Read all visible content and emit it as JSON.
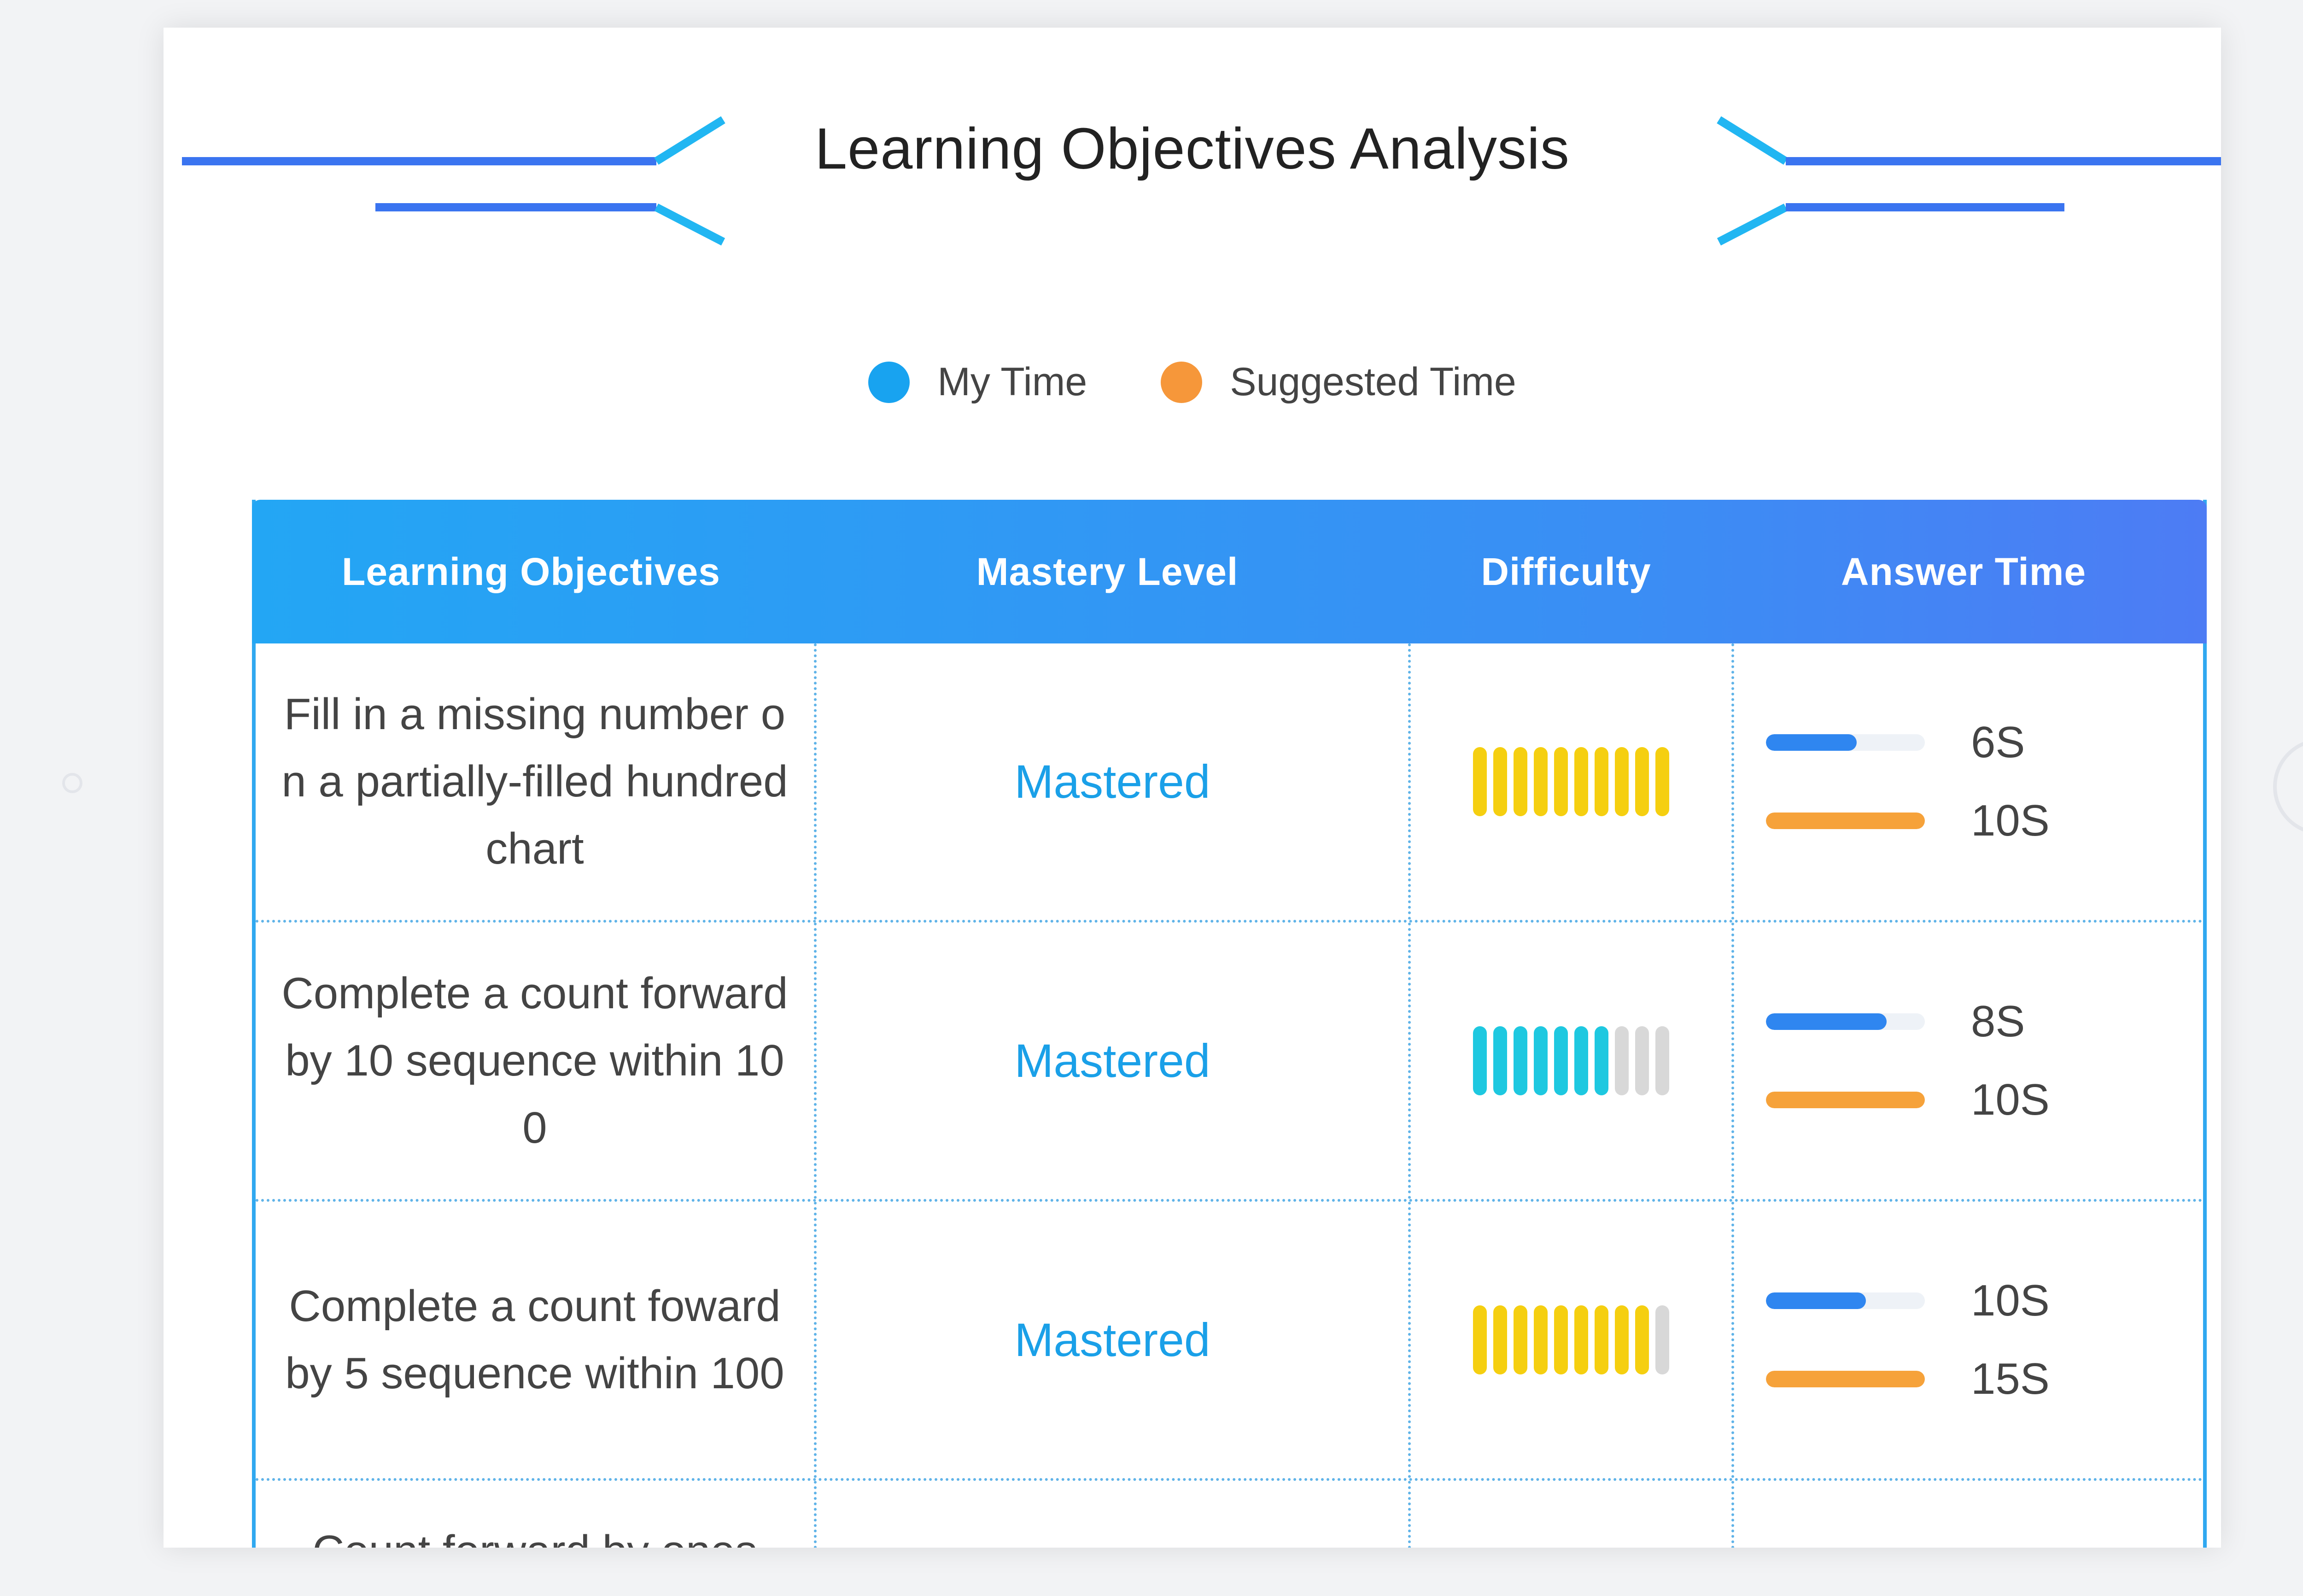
{
  "report": {
    "title": "Learning Objectives Analysis",
    "legend": [
      {
        "label": "My Time",
        "color": "#18a3f0"
      },
      {
        "label": "Suggested Time",
        "color": "#f6973a"
      }
    ],
    "columns": [
      "Learning Objectives",
      "Mastery Level",
      "Difficulty",
      "Answer Time"
    ],
    "rows": [
      {
        "objective": "Fill in a missing number on a partially-filled hundred chart",
        "mastery": "Mastered",
        "difficulty": {
          "filled": 10,
          "total": 10,
          "color": "#f5cf10"
        },
        "my_time": "6S",
        "my_time_value": 6,
        "suggested_time": "10S",
        "suggested_time_value": 10
      },
      {
        "objective": "Complete a count forward by 10 sequence within 100",
        "mastery": "Mastered",
        "difficulty": {
          "filled": 7,
          "total": 10,
          "color": "#1ec8e0"
        },
        "my_time": "8S",
        "my_time_value": 8,
        "suggested_time": "10S",
        "suggested_time_value": 10
      },
      {
        "objective": "Complete a count foward by 5 sequence within 100",
        "mastery": "Mastered",
        "difficulty": {
          "filled": 9,
          "total": 10,
          "color": "#f5cf10"
        },
        "my_time": "10S",
        "my_time_value": 10,
        "suggested_time": "15S",
        "suggested_time_value": 15
      }
    ],
    "partial_row_text": "Count forward by ones",
    "colors": {
      "my_time": "#2f86f0",
      "suggested_time": "#f6a23a",
      "empty_bar": "#d8d8d8",
      "header": "#2a9cf4"
    }
  }
}
